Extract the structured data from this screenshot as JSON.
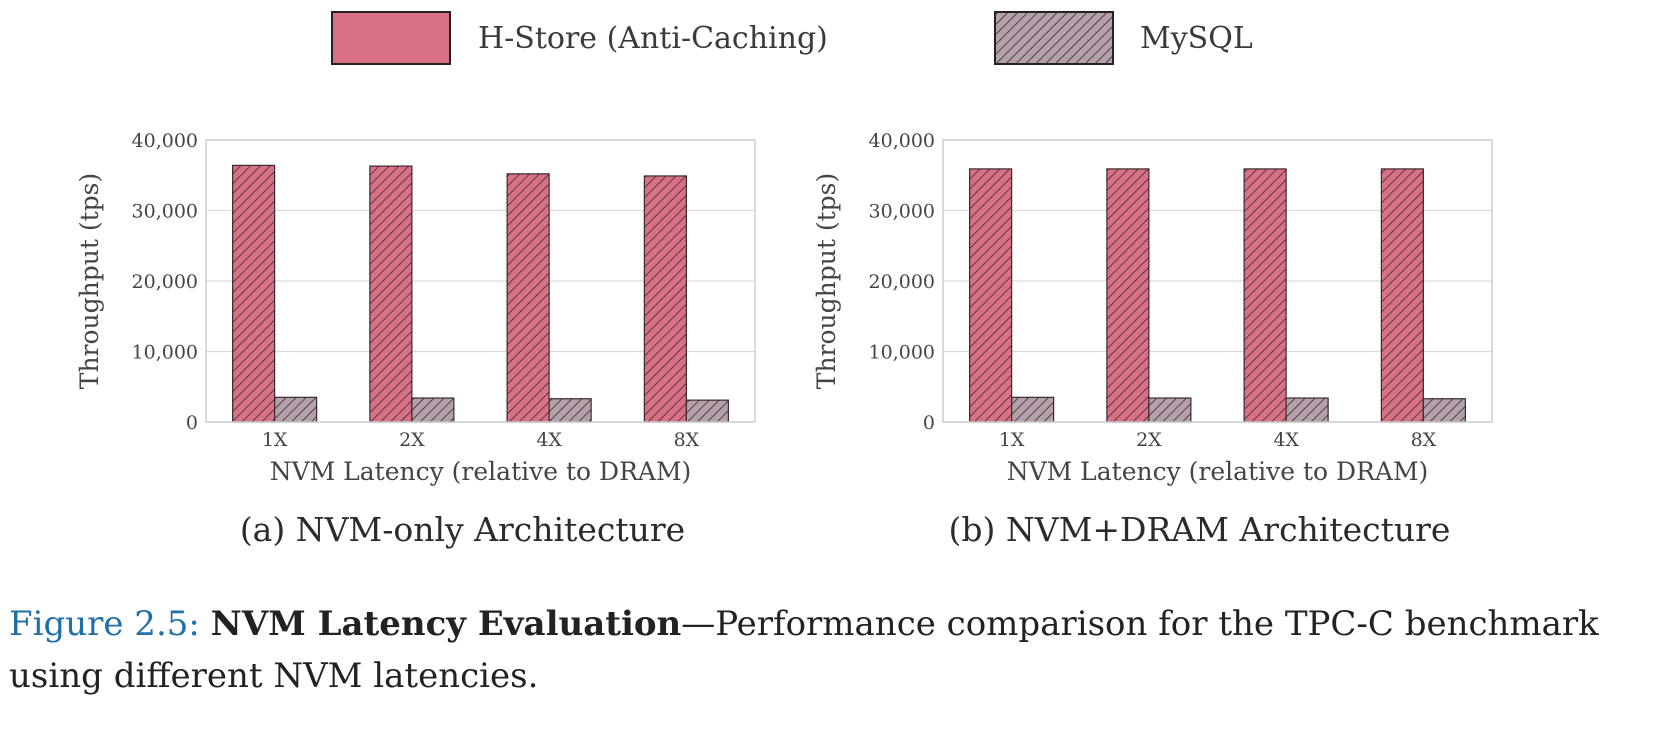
{
  "legend": {
    "items": [
      {
        "label": "H-Store (Anti-Caching)",
        "color": "#d97185",
        "hatched": true
      },
      {
        "label": "MySQL",
        "color": "#b3a0aa",
        "hatched": true
      }
    ]
  },
  "colors": {
    "hstore": "#d97185",
    "mysql": "#b3a0aa",
    "grid": "#d9d9d9",
    "caption_label": "#1f6fa8"
  },
  "chart_data": [
    {
      "type": "bar",
      "subcaption": "(a) NVM-only Architecture",
      "xlabel": "NVM Latency (relative to DRAM)",
      "ylabel": "Throughput (tps)",
      "categories": [
        "1X",
        "2X",
        "4X",
        "8X"
      ],
      "ylim": [
        0,
        40000
      ],
      "yticks": [
        0,
        10000,
        20000,
        30000,
        40000
      ],
      "ytick_labels": [
        "0",
        "10,000",
        "20,000",
        "30,000",
        "40,000"
      ],
      "grid": true,
      "series": [
        {
          "name": "H-Store (Anti-Caching)",
          "values": [
            36400,
            36300,
            35200,
            34900
          ]
        },
        {
          "name": "MySQL",
          "values": [
            3500,
            3400,
            3300,
            3100
          ]
        }
      ]
    },
    {
      "type": "bar",
      "subcaption": "(b) NVM+DRAM Architecture",
      "xlabel": "NVM Latency (relative to DRAM)",
      "ylabel": "Throughput (tps)",
      "categories": [
        "1X",
        "2X",
        "4X",
        "8X"
      ],
      "ylim": [
        0,
        40000
      ],
      "yticks": [
        0,
        10000,
        20000,
        30000,
        40000
      ],
      "ytick_labels": [
        "0",
        "10,000",
        "20,000",
        "30,000",
        "40,000"
      ],
      "grid": true,
      "series": [
        {
          "name": "H-Store (Anti-Caching)",
          "values": [
            35900,
            35900,
            35900,
            35900
          ]
        },
        {
          "name": "MySQL",
          "values": [
            3500,
            3400,
            3400,
            3300
          ]
        }
      ]
    }
  ],
  "caption": {
    "label": "Figure 2.5:",
    "bold": "NVM Latency Evaluation",
    "text": "—Performance comparison for the TPC-C benchmark using different NVM latencies."
  }
}
